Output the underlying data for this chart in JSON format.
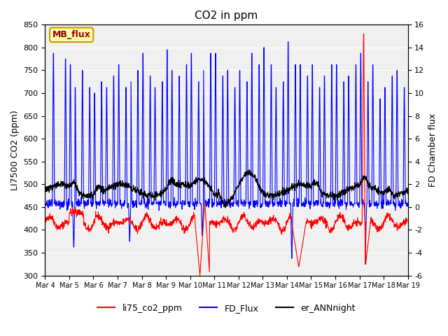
{
  "title": "CO2 in ppm",
  "ylabel_left": "LI7500 CO2 (ppm)",
  "ylabel_right": "FD Chamber flux",
  "ylim_left": [
    300,
    850
  ],
  "ylim_right": [
    -6,
    16
  ],
  "yticks_left": [
    300,
    350,
    400,
    450,
    500,
    550,
    600,
    650,
    700,
    750,
    800,
    850
  ],
  "yticks_right": [
    -6,
    -4,
    -2,
    0,
    2,
    4,
    6,
    8,
    10,
    12,
    14,
    16
  ],
  "xtick_labels": [
    "Mar 4",
    "Mar 5",
    "Mar 6",
    "Mar 7",
    "Mar 8",
    "Mar 9",
    "Mar 10",
    "Mar 11",
    "Mar 12",
    "Mar 13",
    "Mar 14",
    "Mar 15",
    "Mar 16",
    "Mar 17",
    "Mar 18",
    "Mar 19"
  ],
  "color_red": "#ff0000",
  "color_blue": "#0000ff",
  "color_black": "#000000",
  "color_bg": "#f0f0f0",
  "legend_labels": [
    "li75_co2_ppm",
    "FD_Flux",
    "er_ANNnight"
  ],
  "mb_flux_label": "MB_flux",
  "mb_flux_bg": "#ffffaa",
  "mb_flux_border": "#cc9900"
}
